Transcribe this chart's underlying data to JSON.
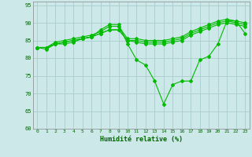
{
  "xlabel": "Humidité relative (%)",
  "background_color": "#cce8e8",
  "grid_color": "#aacccc",
  "line_color": "#00bb00",
  "ylim": [
    60,
    96
  ],
  "xlim": [
    -0.5,
    23.5
  ],
  "yticks": [
    60,
    65,
    70,
    75,
    80,
    85,
    90,
    95
  ],
  "xticks": [
    0,
    1,
    2,
    3,
    4,
    5,
    6,
    7,
    8,
    9,
    10,
    11,
    12,
    13,
    14,
    15,
    16,
    17,
    18,
    19,
    20,
    21,
    22,
    23
  ],
  "series": [
    [
      83,
      82.5,
      84,
      84,
      84.5,
      85.5,
      86,
      88,
      89.5,
      89.5,
      84,
      79.5,
      78,
      73.5,
      67,
      72.5,
      73.5,
      73.5,
      79.5,
      80.5,
      84,
      90.5,
      90.5,
      87
    ],
    [
      83,
      83,
      84,
      84.5,
      85,
      85.5,
      86,
      87,
      88,
      88,
      85,
      85,
      84.5,
      84.5,
      84.5,
      85,
      85.5,
      87,
      88,
      89,
      90,
      90.5,
      90,
      89.5
    ],
    [
      83,
      83,
      84.5,
      85,
      85.5,
      86,
      86.5,
      87.5,
      89,
      89,
      85.5,
      85.5,
      85,
      85,
      85,
      85.5,
      86,
      87.5,
      88.5,
      89.5,
      90.5,
      91,
      90.5,
      90
    ],
    [
      83,
      83,
      84,
      84.5,
      85,
      85.5,
      86,
      87,
      88,
      88,
      85,
      84.5,
      84,
      84,
      84,
      84.5,
      85,
      86.5,
      87.5,
      88.5,
      89.5,
      90,
      89.5,
      89
    ]
  ]
}
